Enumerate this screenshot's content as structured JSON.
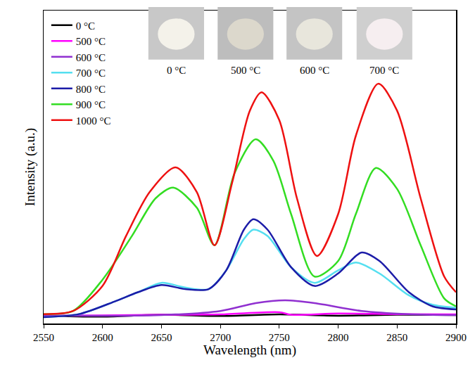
{
  "chart_data": {
    "type": "line",
    "x_label": "Wavelength (nm)",
    "y_label": "Intensity (a.u.)",
    "xlim": [
      2550,
      2900
    ],
    "xticks": [
      2550,
      2600,
      2650,
      2700,
      2750,
      2800,
      2850,
      2900
    ],
    "ylim": [
      0,
      100
    ],
    "tick_labels": "x",
    "legend": "upper left",
    "inset_labels": [
      "0 °C",
      "500 °C",
      "600 °C",
      "700 °C"
    ],
    "series": [
      {
        "name": "0 °C",
        "color": "#000000",
        "x": [
          2550,
          2600,
          2650,
          2700,
          2750,
          2800,
          2850,
          2900
        ],
        "values": [
          2.5,
          2.2,
          2.8,
          2.4,
          2.9,
          2.5,
          2.8,
          2.7
        ]
      },
      {
        "name": "500 °C",
        "color": "#ff00ff",
        "x": [
          2550,
          2600,
          2650,
          2700,
          2750,
          2760,
          2800,
          2850,
          2900
        ],
        "values": [
          2.5,
          2.6,
          2.8,
          2.9,
          3.6,
          2.8,
          3.2,
          3.0,
          2.9
        ]
      },
      {
        "name": "600 °C",
        "color": "#9030d0",
        "x": [
          2550,
          2650,
          2700,
          2730,
          2755,
          2780,
          2820,
          2860,
          2900
        ],
        "values": [
          2.5,
          2.7,
          4,
          6.5,
          7.4,
          6.5,
          4,
          3,
          2.7
        ]
      },
      {
        "name": "700 °C",
        "color": "#55dff0",
        "x": [
          2550,
          2580,
          2610,
          2630,
          2650,
          2670,
          2690,
          2705,
          2720,
          2728,
          2740,
          2760,
          2780,
          2800,
          2815,
          2835,
          2860,
          2880,
          2900
        ],
        "values": [
          2,
          3,
          7,
          10,
          13,
          11.5,
          11,
          17,
          27,
          30,
          28,
          18,
          13,
          17,
          19.5,
          16,
          9,
          6,
          5
        ]
      },
      {
        "name": "800 °C",
        "color": "#1c1ca8",
        "x": [
          2550,
          2580,
          2610,
          2630,
          2650,
          2670,
          2690,
          2705,
          2720,
          2728,
          2740,
          2760,
          2780,
          2800,
          2820,
          2835,
          2860,
          2880,
          2900
        ],
        "values": [
          2,
          3,
          7,
          10,
          12.3,
          11,
          11,
          17,
          30,
          33.3,
          30,
          18,
          12,
          16,
          22.7,
          20,
          10,
          5.5,
          4.5
        ]
      },
      {
        "name": "900 °C",
        "color": "#33dd22",
        "x": [
          2550,
          2575,
          2600,
          2625,
          2645,
          2660,
          2680,
          2695,
          2712,
          2730,
          2745,
          2760,
          2780,
          2800,
          2815,
          2832,
          2850,
          2870,
          2890,
          2900
        ],
        "values": [
          3,
          4,
          14,
          28,
          40,
          43.4,
          37,
          25,
          48,
          58.9,
          52,
          35,
          15,
          20,
          35,
          49.7,
          43,
          25,
          8,
          5.5
        ]
      },
      {
        "name": "1000 °C",
        "color": "#ee1111",
        "x": [
          2550,
          2575,
          2600,
          2620,
          2640,
          2662,
          2680,
          2695,
          2710,
          2725,
          2735,
          2750,
          2765,
          2782,
          2800,
          2815,
          2834,
          2850,
          2870,
          2890,
          2900
        ],
        "values": [
          3,
          4,
          12,
          28,
          42,
          49.9,
          42,
          25,
          45,
          68,
          73.9,
          65,
          40,
          21.6,
          35,
          60,
          76.6,
          68,
          40,
          15,
          10
        ]
      }
    ]
  }
}
